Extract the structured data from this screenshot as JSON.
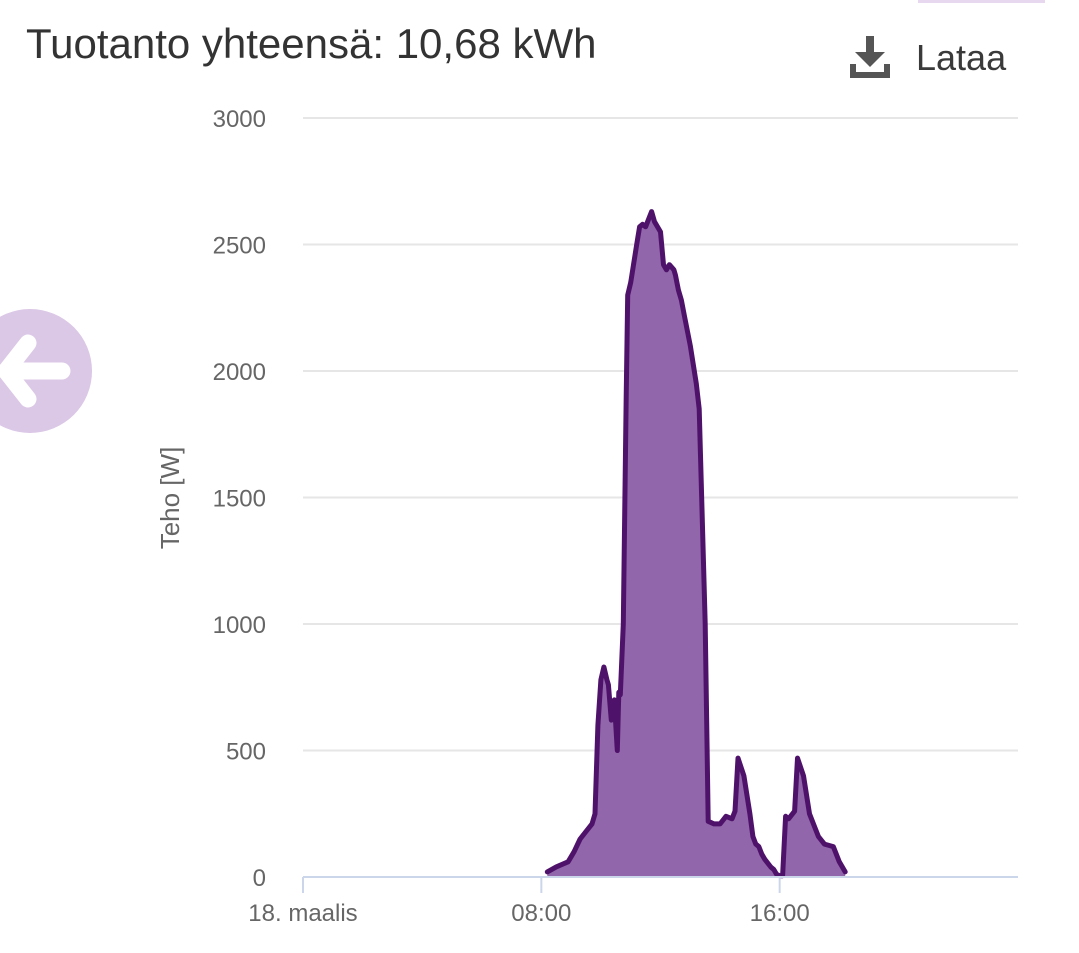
{
  "header": {
    "title": "Tuotanto yhteensä: 10,68 kWh",
    "download_label": "Lataa",
    "download_icon": "download-icon",
    "back_icon": "arrow-left-icon"
  },
  "colors": {
    "series_line": "#4f126a",
    "series_fill": "#9166aa",
    "grid": "#e6e6e6",
    "x_axis": "#ccd6eb",
    "back_button": "#dbc7e6"
  },
  "chart_data": {
    "type": "area",
    "title": "",
    "xlabel": "",
    "ylabel": "Teho [W]",
    "ylim": [
      0,
      3000
    ],
    "xlim_hours": [
      0,
      24
    ],
    "yticks": [
      0,
      500,
      1000,
      1500,
      2000,
      2500,
      3000
    ],
    "xticks": [
      {
        "hour": 0,
        "label": "18. maalis"
      },
      {
        "hour": 8,
        "label": "08:00"
      },
      {
        "hour": 16,
        "label": "16:00"
      }
    ],
    "grid": true,
    "legend": "none",
    "series": [
      {
        "x_hours": [
          8.2,
          8.5,
          8.9,
          9.1,
          9.3,
          9.5,
          9.7,
          9.8,
          9.9,
          10.0,
          10.1,
          10.2,
          10.25,
          10.35,
          10.45,
          10.55,
          10.6,
          10.65,
          10.75,
          10.85,
          10.9,
          11.0,
          11.2,
          11.3,
          11.4,
          11.5,
          11.6,
          11.7,
          11.8,
          12.0,
          12.1,
          12.2,
          12.3,
          12.45,
          12.5,
          12.6,
          12.7,
          12.8,
          13.0,
          13.2,
          13.3,
          13.5,
          13.6,
          13.8,
          14.0,
          14.2,
          14.4,
          14.5,
          14.6,
          14.8,
          15.0,
          15.1,
          15.2,
          15.3,
          15.4,
          15.5,
          15.7,
          15.8,
          15.9,
          16.0,
          16.1,
          16.2,
          16.3,
          16.5,
          16.6,
          16.8,
          17.0,
          17.3,
          17.5,
          17.8,
          18.0,
          18.2
        ],
        "y": [
          20,
          40,
          60,
          100,
          150,
          180,
          210,
          250,
          600,
          780,
          830,
          780,
          760,
          620,
          700,
          500,
          730,
          720,
          1000,
          1900,
          2300,
          2350,
          2500,
          2570,
          2580,
          2570,
          2600,
          2630,
          2590,
          2550,
          2420,
          2400,
          2420,
          2400,
          2380,
          2320,
          2280,
          2220,
          2100,
          1950,
          1850,
          1000,
          220,
          210,
          210,
          240,
          230,
          260,
          470,
          400,
          250,
          160,
          130,
          120,
          90,
          70,
          40,
          30,
          10,
          5,
          5,
          240,
          230,
          260,
          470,
          400,
          250,
          160,
          130,
          120,
          60,
          20
        ]
      }
    ]
  }
}
